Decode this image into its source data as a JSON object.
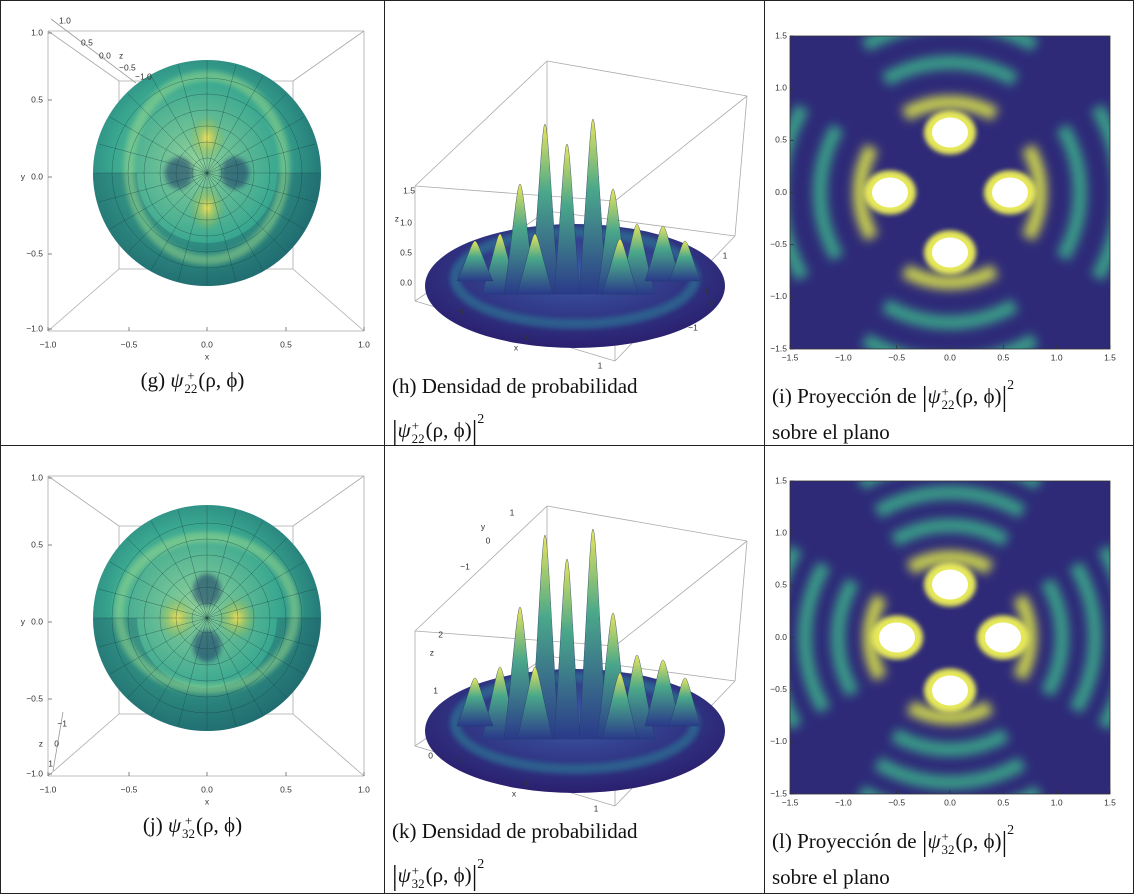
{
  "panels": [
    {
      "kind": "surface",
      "caption": {
        "prefix": "(g)",
        "symbol": "ψ",
        "sup": "+",
        "sub": "22",
        "args": "(ρ, ϕ)"
      },
      "yticks": [
        "1.0",
        "0.5",
        "0.0",
        "−0.5",
        "−1.0"
      ],
      "xticks": [
        "−1.0",
        "−0.5",
        "0.0",
        "0.5",
        "1.0"
      ],
      "xlabel": "x",
      "ylabel": "y",
      "zticks": [
        "1.0",
        "0.5",
        "0.0",
        "−0.5",
        "−1.0"
      ],
      "zlabel": "z"
    },
    {
      "kind": "density",
      "caption": {
        "prefix": "(h) Densidad de probabilidad",
        "open": "|",
        "symbol": "ψ",
        "sup": "+",
        "sub": "22",
        "args": "(ρ, ϕ)",
        "close": "|",
        "power": "2"
      },
      "zticks": [
        "1.5",
        "1.0",
        "0.5",
        "0.0"
      ],
      "zlabel": "z",
      "xticks": [
        "−1",
        "0",
        "1"
      ],
      "xlabel": "x",
      "yticks": [
        "1",
        "0",
        "−1"
      ],
      "ylabel": "y"
    },
    {
      "kind": "projection",
      "caption": {
        "prefix": "(i) Proyección de",
        "open": "|",
        "symbol": "ψ",
        "sup": "+",
        "sub": "22",
        "args": "(ρ, ϕ)",
        "close": "|",
        "power": "2",
        "suffix": "sobre el plano"
      },
      "yticks": [
        "1.5",
        "1.0",
        "0.5",
        "0.0",
        "−0.5",
        "−1.0",
        "−1.5"
      ],
      "xticks": [
        "−1.5",
        "−1.0",
        "−0.5",
        "0.0",
        "0.5",
        "1.0",
        "1.5"
      ]
    },
    {
      "kind": "surface2",
      "caption": {
        "prefix": "(j)",
        "symbol": "ψ",
        "sup": "+",
        "sub": "32",
        "args": "(ρ, ϕ)"
      },
      "yticks": [
        "1.0",
        "0.5",
        "0.0",
        "−0.5",
        "−1.0"
      ],
      "xticks": [
        "−1.0",
        "−0.5",
        "0.0",
        "0.5",
        "1.0"
      ],
      "xlabel": "x",
      "ylabel": "y",
      "zticks": [
        "−1",
        "0",
        "1"
      ],
      "zlabel": "z"
    },
    {
      "kind": "density2",
      "caption": {
        "prefix": "(k) Densidad de probabilidad",
        "open": "|",
        "symbol": "ψ",
        "sup": "+",
        "sub": "32",
        "args": "(ρ, ϕ)",
        "close": "|",
        "power": "2"
      },
      "zticks": [
        "2",
        "1",
        "0"
      ],
      "zlabel": "z",
      "xticks": [
        "−1",
        "0",
        "1"
      ],
      "xlabel": "x",
      "yticks": [
        "1",
        "0",
        "−1"
      ],
      "ylabel": "y"
    },
    {
      "kind": "projection2",
      "caption": {
        "prefix": "(l) Proyección de",
        "open": "|",
        "symbol": "ψ",
        "sup": "+",
        "sub": "32",
        "args": "(ρ, ϕ)",
        "close": "|",
        "power": "2",
        "suffix": "sobre el plano"
      },
      "yticks": [
        "1.5",
        "1.0",
        "0.5",
        "0.0",
        "−0.5",
        "−1.0",
        "−1.5"
      ],
      "xticks": [
        "−1.5",
        "−1.0",
        "−0.5",
        "0.0",
        "0.5",
        "1.0",
        "1.5"
      ]
    }
  ]
}
